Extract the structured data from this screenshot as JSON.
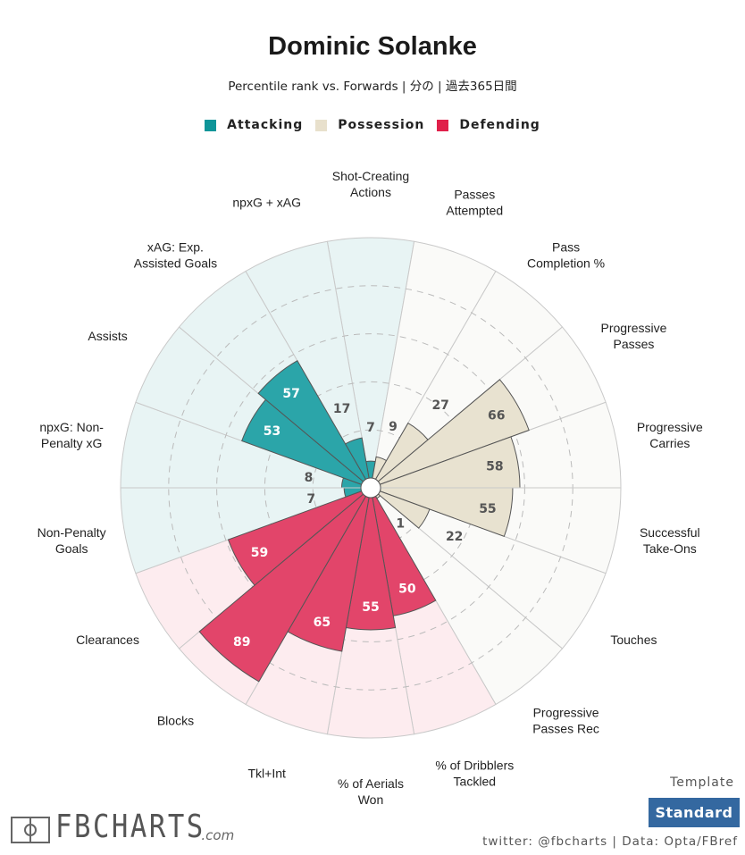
{
  "header": {
    "title": "Dominic Solanke",
    "subtitle": "Percentile rank vs. Forwards | 分の | 過去365日間"
  },
  "legend": [
    {
      "label": "Attacking",
      "color": "#0f9599"
    },
    {
      "label": "Possession",
      "color": "#e8e0cc"
    },
    {
      "label": "Defending",
      "color": "#e0204a"
    }
  ],
  "chart_data": {
    "type": "polar-bar",
    "title": "Dominic Solanke",
    "range": [
      0,
      100
    ],
    "gridlines": [
      20,
      40,
      60,
      80
    ],
    "colors": {
      "Attacking": {
        "bar": "#2ba5a9",
        "bg": "#e8f4f4"
      },
      "Possession": {
        "bar": "#e8e2d0",
        "bg": "#fafaf8"
      },
      "Defending": {
        "bar": "#e2456a",
        "bg": "#fdecef"
      }
    },
    "categories": [
      {
        "label": [
          "Shot-Creating",
          "Actions"
        ],
        "group": "Attacking",
        "value": 7
      },
      {
        "label": [
          "Passes",
          "Attempted"
        ],
        "group": "Possession",
        "value": 9
      },
      {
        "label": [
          "Pass",
          "Completion %"
        ],
        "group": "Possession",
        "value": 27
      },
      {
        "label": [
          "Progressive",
          "Passes"
        ],
        "group": "Possession",
        "value": 66
      },
      {
        "label": [
          "Progressive",
          "Carries"
        ],
        "group": "Possession",
        "value": 58
      },
      {
        "label": [
          "Successful",
          "Take-Ons"
        ],
        "group": "Possession",
        "value": 55
      },
      {
        "label": [
          "Touches"
        ],
        "group": "Possession",
        "value": 22
      },
      {
        "label": [
          "Progressive",
          "Passes Rec"
        ],
        "group": "Possession",
        "value": 1
      },
      {
        "label": [
          "% of Dribblers",
          "Tackled"
        ],
        "group": "Defending",
        "value": 50
      },
      {
        "label": [
          "% of Aerials",
          "Won"
        ],
        "group": "Defending",
        "value": 55
      },
      {
        "label": [
          "Tkl+Int"
        ],
        "group": "Defending",
        "value": 65
      },
      {
        "label": [
          "Blocks"
        ],
        "group": "Defending",
        "value": 89
      },
      {
        "label": [
          "Clearances"
        ],
        "group": "Defending",
        "value": 59
      },
      {
        "label": [
          "Non-Penalty",
          "Goals"
        ],
        "group": "Attacking",
        "value": 7
      },
      {
        "label": [
          "npxG: Non-",
          "Penalty xG"
        ],
        "group": "Attacking",
        "value": 8
      },
      {
        "label": [
          "Assists"
        ],
        "group": "Attacking",
        "value": 53
      },
      {
        "label": [
          "xAG: Exp.",
          "Assisted Goals"
        ],
        "group": "Attacking",
        "value": 57
      },
      {
        "label": [
          "npxG + xAG"
        ],
        "group": "Attacking",
        "value": 17
      }
    ]
  },
  "footer": {
    "logo_text": "FBCHARTS",
    "logo_suffix": ".com",
    "template_label": "Template",
    "template_button": "Standard",
    "credit": "twitter: @fbcharts | Data: Opta/FBref"
  }
}
